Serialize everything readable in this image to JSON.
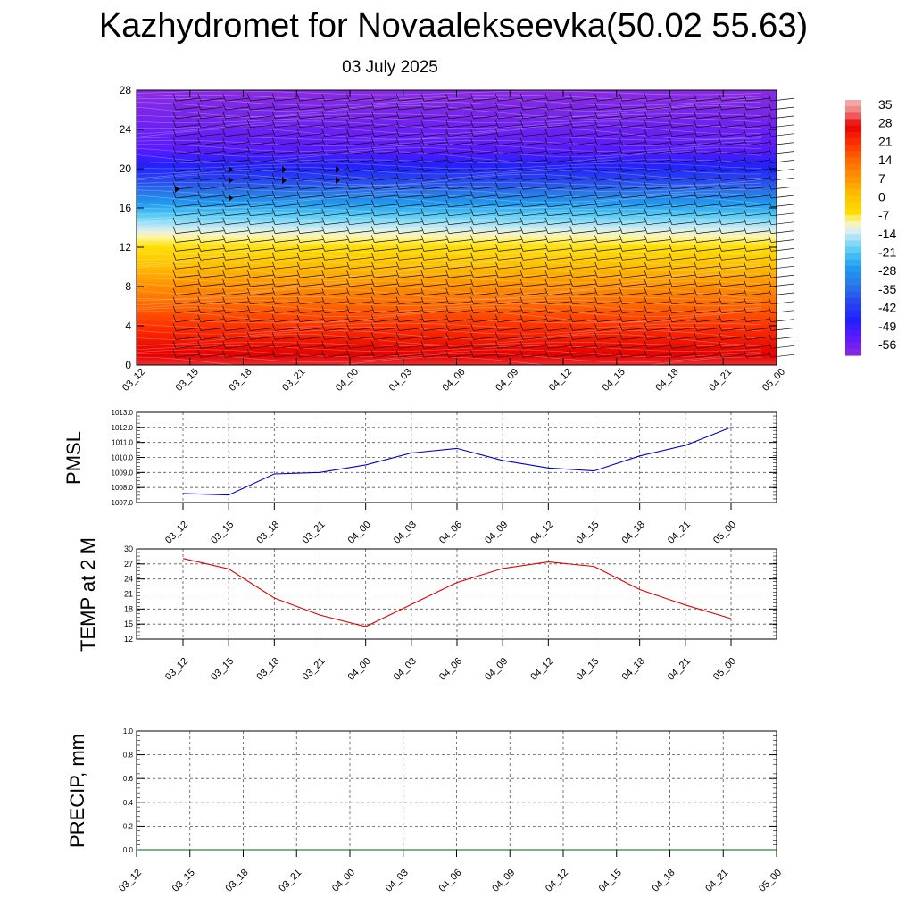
{
  "header": {
    "title": "Kazhydromet for Novaalekseevka(50.02 55.63)",
    "date": "03 July 2025"
  },
  "colors": {
    "pmsl_line": "#0000cc",
    "temp_line": "#e00000",
    "precip_line": "#006400",
    "grid": "#555555"
  },
  "chart_data": [
    {
      "type": "heatmap",
      "title": "",
      "x": [
        "03_12",
        "03_15",
        "03_18",
        "03_21",
        "04_00",
        "04_03",
        "04_06",
        "04_09",
        "04_12",
        "04_15",
        "04_18",
        "04_21",
        "05_00"
      ],
      "y_ticks": [
        0,
        4,
        8,
        12,
        16,
        20,
        24,
        28
      ],
      "ylim": [
        0,
        28
      ],
      "xlabel": "",
      "ylabel": "",
      "colorbar_ticks": [
        "35",
        "28",
        "21",
        "14",
        "7",
        "0",
        "-7",
        "-14",
        "-21",
        "-28",
        "-35",
        "-42",
        "-49",
        "-56"
      ],
      "colorbar_range": [
        -63,
        38
      ],
      "temperature_profile": [
        {
          "level": 0,
          "value": 30
        },
        {
          "level": 2,
          "value": 26
        },
        {
          "level": 5,
          "value": 18
        },
        {
          "level": 8,
          "value": 8
        },
        {
          "level": 11,
          "value": -3
        },
        {
          "level": 13,
          "value": -10
        },
        {
          "level": 14,
          "value": -15
        },
        {
          "level": 16,
          "value": -26
        },
        {
          "level": 18,
          "value": -38
        },
        {
          "level": 20,
          "value": -48
        },
        {
          "level": 22,
          "value": -56
        },
        {
          "level": 25,
          "value": -60
        },
        {
          "level": 28,
          "value": -63
        }
      ],
      "wind_barbs": "black barbs at each time and level"
    },
    {
      "type": "line",
      "ylabel": "PMSL",
      "x": [
        "03_12",
        "03_15",
        "03_18",
        "03_21",
        "04_00",
        "04_03",
        "04_06",
        "04_09",
        "04_12",
        "04_15",
        "04_18",
        "04_21",
        "05_00"
      ],
      "ylim": [
        1007.0,
        1013.0
      ],
      "y_ticks": [
        "1007.0",
        "1008.0",
        "1009.0",
        "1010.0",
        "1011.0",
        "1012.0",
        "1013.0"
      ],
      "series": [
        {
          "values": [
            1007.6,
            1007.5,
            1008.9,
            1009.0,
            1009.5,
            1010.3,
            1010.6,
            1009.8,
            1009.3,
            1009.1,
            1010.1,
            1010.8,
            1012.0
          ]
        }
      ]
    },
    {
      "type": "line",
      "ylabel": "TEMP at 2 M",
      "x": [
        "03_12",
        "03_15",
        "03_18",
        "03_21",
        "04_00",
        "04_03",
        "04_06",
        "04_09",
        "04_12",
        "04_15",
        "04_18",
        "04_21",
        "05_00"
      ],
      "ylim": [
        12,
        30
      ],
      "y_ticks": [
        "12",
        "15",
        "18",
        "21",
        "24",
        "27",
        "30"
      ],
      "series": [
        {
          "values": [
            28.1,
            26.0,
            20.2,
            16.8,
            14.5,
            18.9,
            23.3,
            26.1,
            27.4,
            26.5,
            21.9,
            18.8,
            16.1
          ]
        }
      ]
    },
    {
      "type": "line",
      "ylabel": "PRECIP, mm",
      "x": [
        "03_12",
        "03_15",
        "03_18",
        "03_21",
        "04_00",
        "04_03",
        "04_06",
        "04_09",
        "04_12",
        "04_15",
        "04_18",
        "04_21",
        "05_00"
      ],
      "ylim": [
        0.0,
        1.0
      ],
      "y_ticks": [
        "0.0",
        "0.2",
        "0.4",
        "0.6",
        "0.8",
        "1.0"
      ],
      "series": [
        {
          "values": [
            0,
            0,
            0,
            0,
            0,
            0,
            0,
            0,
            0,
            0,
            0,
            0,
            0
          ]
        }
      ]
    }
  ]
}
